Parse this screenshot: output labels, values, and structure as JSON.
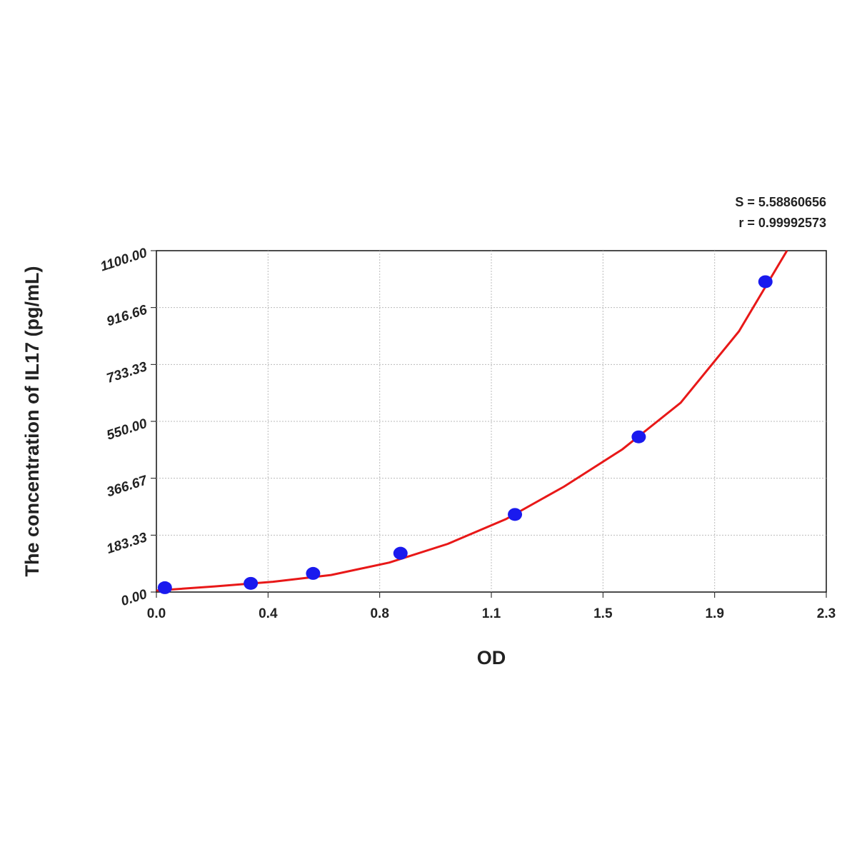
{
  "chart_data": {
    "type": "scatter",
    "annotations": [
      "S = 5.58860656",
      "r = 0.99992573"
    ],
    "x_label": "OD",
    "y_label": "The concentration of  IL17 (pg/mL)",
    "xlim": [
      0,
      2.3
    ],
    "ylim": [
      0,
      1100
    ],
    "xticks": [
      {
        "value": 0,
        "label": "0.0"
      },
      {
        "value": 0.3833,
        "label": "0.4"
      },
      {
        "value": 0.7667,
        "label": "0.8"
      },
      {
        "value": 1.15,
        "label": "1.1"
      },
      {
        "value": 1.5333,
        "label": "1.5"
      },
      {
        "value": 1.9167,
        "label": "1.9"
      },
      {
        "value": 2.3,
        "label": "2.3"
      }
    ],
    "yticks": [
      {
        "value": 0,
        "label": "0.00"
      },
      {
        "value": 183.33,
        "label": "183.33"
      },
      {
        "value": 366.67,
        "label": "366.67"
      },
      {
        "value": 550,
        "label": "550.00"
      },
      {
        "value": 733.33,
        "label": "733.33"
      },
      {
        "value": 916.66,
        "label": "916.66"
      },
      {
        "value": 1100,
        "label": "1100.00"
      }
    ],
    "grid": true,
    "series": [
      {
        "kind": "points",
        "color": "#1a1aee",
        "x": [
          0.029,
          0.324,
          0.538,
          0.838,
          1.231,
          1.656,
          2.091
        ],
        "values": [
          14,
          28,
          60,
          125,
          250,
          500,
          1000
        ]
      },
      {
        "kind": "curve",
        "color": "#e81818",
        "x": [
          0,
          0.2,
          0.4,
          0.6,
          0.8,
          1.0,
          1.2,
          1.4,
          1.6,
          1.8,
          2.0,
          2.165
        ],
        "values": [
          5,
          18,
          33,
          55,
          95,
          155,
          235,
          340,
          460,
          610,
          840,
          1100
        ]
      }
    ]
  }
}
